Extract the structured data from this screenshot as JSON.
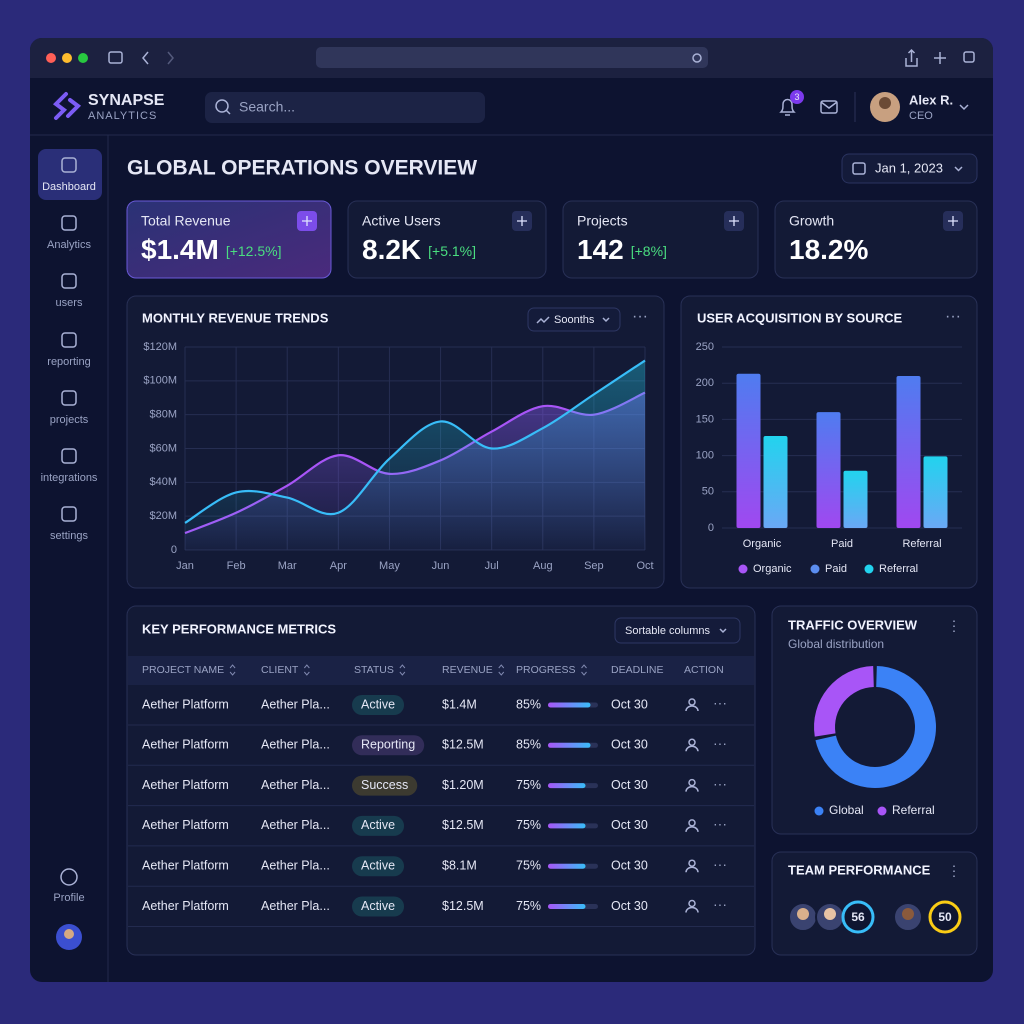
{
  "brand": {
    "name": "SYNAPSE",
    "tagline": "ANALYTICS"
  },
  "search": {
    "placeholder": "Search..."
  },
  "notifications": {
    "count": "3"
  },
  "user": {
    "name": "Alex R.",
    "role": "CEO"
  },
  "nav": [
    "Dashboard",
    "Analytics",
    "users",
    "reporting",
    "projects",
    "integrations",
    "settings"
  ],
  "profile": "Profile",
  "page": {
    "title": "GLOBAL OPERATIONS OVERVIEW",
    "date": "Jan 1, 2023"
  },
  "kpis": [
    {
      "label": "Total Revenue",
      "value": "$1.4M",
      "change": "[+12.5%]"
    },
    {
      "label": "Active Users",
      "value": "8.2K",
      "change": "[+5.1%]"
    },
    {
      "label": "Projects",
      "value": "142",
      "change": "[+8%]"
    },
    {
      "label": "Growth",
      "value": "18.2%"
    }
  ],
  "chart_data": [
    {
      "type": "line",
      "title": "MONTHLY REVENUE TRENDS",
      "control": "Soonths",
      "categories": [
        "Jan",
        "Feb",
        "Mar",
        "Apr",
        "May",
        "Jun",
        "Jul",
        "Aug",
        "Sep",
        "Oct"
      ],
      "series": [
        {
          "color": "#a855f7",
          "values": [
            10,
            22,
            38,
            56,
            45,
            53,
            70,
            85,
            80,
            93
          ]
        },
        {
          "color": "#38bdf8",
          "values": [
            16,
            34,
            31,
            22,
            54,
            76,
            60,
            72,
            92,
            112
          ]
        }
      ],
      "ylim": [
        0,
        120
      ],
      "yticks": [
        0,
        {
          "value": 20,
          "label": "$20M"
        },
        {
          "value": 40,
          "label": "$40M"
        },
        {
          "value": 60,
          "label": "$60M"
        },
        {
          "value": 80,
          "label": "$80M"
        },
        {
          "value": 100,
          "label": "$100M"
        },
        {
          "value": 120,
          "label": "$120M"
        }
      ],
      "grid": true
    },
    {
      "type": "bar",
      "title": "USER ACQUISITION BY SOURCE",
      "categories": [
        "Organic",
        "Paid",
        "Referral"
      ],
      "series": [
        {
          "color": "#6d5cf0",
          "values": [
            213,
            160,
            210
          ]
        },
        {
          "color": "#22d3ee",
          "values": [
            127,
            79,
            99
          ]
        }
      ],
      "legend": [
        {
          "name": "Organic",
          "color": "#a855f7"
        },
        {
          "name": "Paid",
          "color": "#5b8def"
        },
        {
          "name": "Referral",
          "color": "#22d3ee"
        }
      ],
      "ylim": [
        0,
        250
      ],
      "yticks": [
        0,
        50,
        100,
        150,
        200,
        250
      ],
      "grid": true
    },
    {
      "type": "pie",
      "title": "TRAFFIC OVERVIEW",
      "subtitle": "Global distribution",
      "categories": [
        "Global",
        "Referral"
      ],
      "values": [
        72,
        28
      ],
      "colors": [
        "#3b82f6",
        "#a855f7"
      ],
      "donut": true
    }
  ],
  "table": {
    "title": "KEY PERFORMANCE METRICS",
    "sort_control": "Sortable columns",
    "columns": [
      "PROJECT NAME",
      "CLIENT",
      "STATUS",
      "REVENUE",
      "PROGRESS",
      "DEADLINE",
      "ACTION"
    ],
    "rows": [
      {
        "project": "Aether Platform",
        "client": "Aether Pla...",
        "status": "Active",
        "status_color": "#2dd4bf",
        "revenue": "$1.4M",
        "progress": 85,
        "progress_label": "85%",
        "deadline": "Oct 30"
      },
      {
        "project": "Aether Platform",
        "client": "Aether Pla...",
        "status": "Reporting",
        "status_color": "#c084fc",
        "revenue": "$12.5M",
        "progress": 85,
        "progress_label": "85%",
        "deadline": "Oct 30"
      },
      {
        "project": "Aether Platform",
        "client": "Aether Pla...",
        "status": "Success",
        "status_color": "#facc15",
        "revenue": "$1.20M",
        "progress": 75,
        "progress_label": "75%",
        "deadline": "Oct 30"
      },
      {
        "project": "Aether Platform",
        "client": "Aether Pla...",
        "status": "Active",
        "status_color": "#2dd4bf",
        "revenue": "$12.5M",
        "progress": 75,
        "progress_label": "75%",
        "deadline": "Oct 30"
      },
      {
        "project": "Aether Platform",
        "client": "Aether Pla...",
        "status": "Active",
        "status_color": "#2dd4bf",
        "revenue": "$8.1M",
        "progress": 75,
        "progress_label": "75%",
        "deadline": "Oct 30"
      },
      {
        "project": "Aether Platform",
        "client": "Aether Pla...",
        "status": "Active",
        "status_color": "#2dd4bf",
        "revenue": "$12.5M",
        "progress": 75,
        "progress_label": "75%",
        "deadline": "Oct 30"
      }
    ]
  },
  "team": {
    "title": "TEAM PERFORMANCE",
    "scores": [
      {
        "value": "56",
        "color": "#38bdf8"
      },
      {
        "value": "50",
        "color": "#facc15"
      }
    ]
  }
}
